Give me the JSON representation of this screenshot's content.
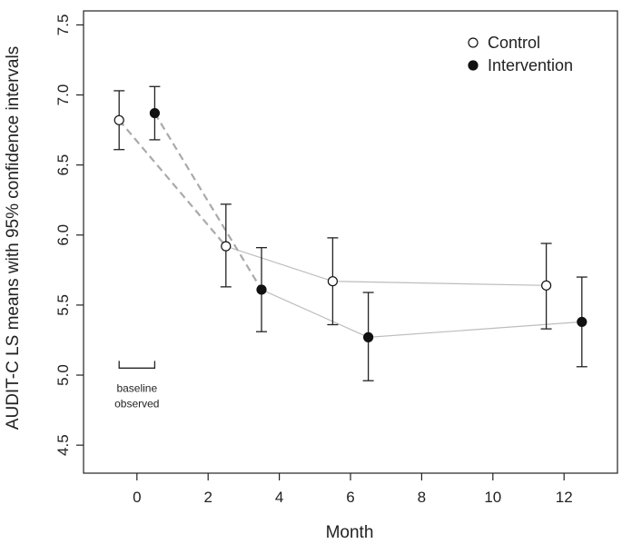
{
  "chart_data": {
    "type": "scatter",
    "xlabel": "Month",
    "ylabel": "AUDIT-C LS means with 95% confidence intervals",
    "xlim": [
      -1.5,
      13.5
    ],
    "ylim": [
      4.3,
      7.6
    ],
    "x_ticks": [
      0,
      2,
      4,
      6,
      8,
      10,
      12
    ],
    "x_tick_labels": [
      "0",
      "2",
      "4",
      "6",
      "8",
      "10",
      "12"
    ],
    "y_ticks": [
      4.5,
      5.0,
      5.5,
      6.0,
      6.5,
      7.0,
      7.5
    ],
    "y_tick_labels": [
      "4.5",
      "5.0",
      "5.5",
      "6.0",
      "6.5",
      "7.0",
      "7.5"
    ],
    "grid": false,
    "legend": "top-right",
    "series": [
      {
        "name": "Control",
        "marker": "open-circle",
        "x": [
          -0.5,
          2.5,
          5.5,
          11.5
        ],
        "y": [
          6.82,
          5.92,
          5.67,
          5.64
        ],
        "ci_low": [
          6.61,
          5.63,
          5.36,
          5.33
        ],
        "ci_high": [
          7.03,
          6.22,
          5.98,
          5.94
        ]
      },
      {
        "name": "Intervention",
        "marker": "filled-circle",
        "x": [
          0.5,
          3.5,
          6.5,
          12.5
        ],
        "y": [
          6.87,
          5.61,
          5.27,
          5.38
        ],
        "ci_low": [
          6.68,
          5.31,
          4.96,
          5.06
        ],
        "ci_high": [
          7.06,
          5.91,
          5.59,
          5.7
        ]
      }
    ],
    "annotations": [
      {
        "text_lines": [
          "baseline",
          "observed"
        ],
        "bracket_x": [
          -0.5,
          0.5
        ],
        "bracket_y": 5.05
      }
    ],
    "colors": {
      "axis": "#222222",
      "points": "#111111",
      "solid_connector": "#bdbdbd",
      "dashed_connector": "#aaaaaa"
    }
  }
}
